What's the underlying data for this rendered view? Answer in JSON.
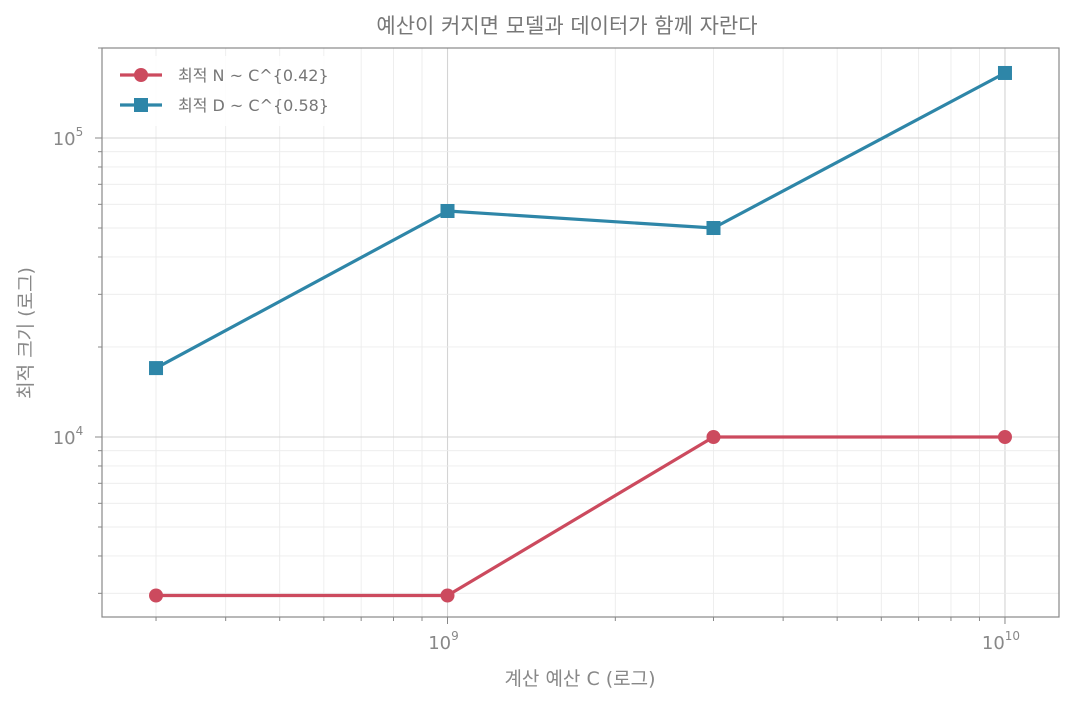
{
  "chart_data": {
    "type": "line",
    "title": "예산이 커지면 모델과 데이터가 함께 자란다",
    "xlabel": "계산 예산 C (로그)",
    "ylabel": "최적 크기 (로그)",
    "x_scale": "log",
    "y_scale": "log",
    "xlim": [
      240000000,
      12500000000
    ],
    "ylim": [
      2500,
      200000
    ],
    "x_ticks": [
      {
        "value": 1000000000,
        "base": "10",
        "exp": "9"
      },
      {
        "value": 10000000000,
        "base": "10",
        "exp": "10"
      }
    ],
    "y_ticks": [
      {
        "value": 10000,
        "base": "10",
        "exp": "4"
      },
      {
        "value": 100000,
        "base": "10",
        "exp": "5"
      }
    ],
    "grid": true,
    "legend_position": "top-left",
    "series": [
      {
        "name": "최적 N ~ C^{0.42}",
        "color": "#cc4a5e",
        "marker": "circle",
        "x": [
          300000000,
          1000000000,
          3000000000,
          10000000000
        ],
        "y": [
          2950,
          2950,
          10000,
          10000
        ]
      },
      {
        "name": "최적 D ~ C^{0.58}",
        "color": "#2e86a8",
        "marker": "square",
        "x": [
          300000000,
          1000000000,
          3000000000,
          10000000000
        ],
        "y": [
          17000,
          57000,
          50000,
          165000
        ]
      }
    ]
  }
}
